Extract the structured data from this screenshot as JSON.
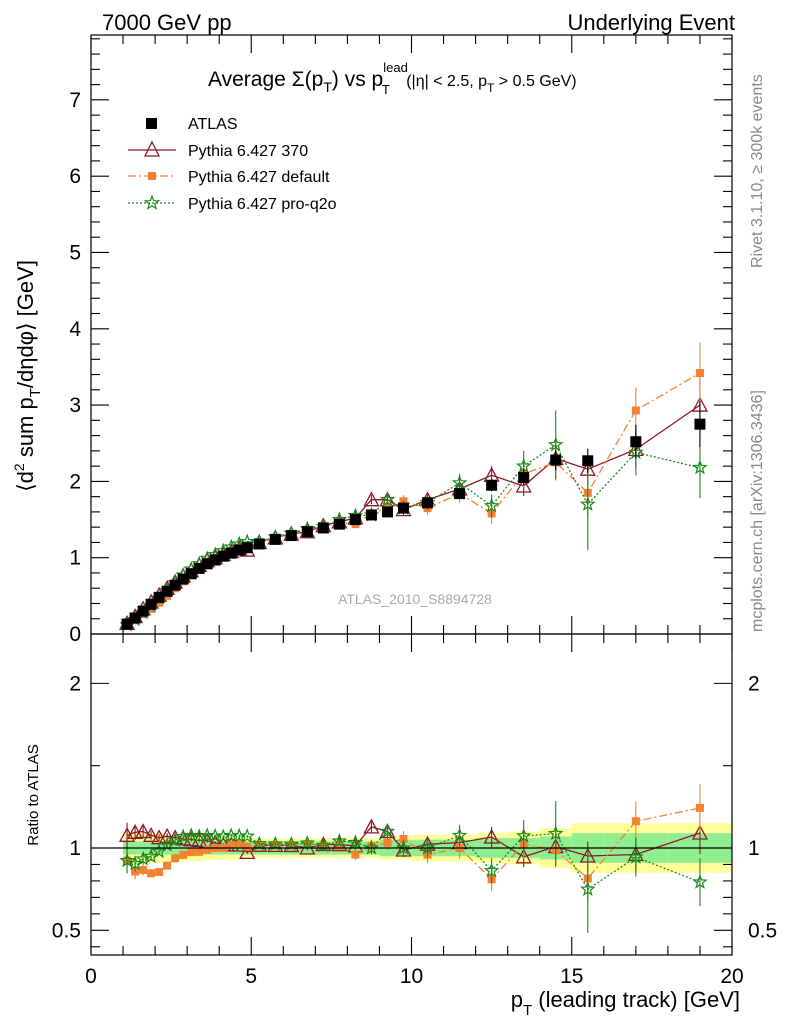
{
  "header": {
    "energy": "7000 GeV pp",
    "process": "Underlying Event"
  },
  "side": {
    "rivet": "Rivet 3.1.10, ≥ 300k events",
    "mcplots": "mcplots.cern.ch [arXiv:1306.3436]"
  },
  "main_title": {
    "prefix": "Average ",
    "sigma": "Σ(p",
    "sigma_sub": "T",
    "sigma_close": ") vs p",
    "lead_sup": "lead",
    "lead_sub": "T",
    "cut1": " (|η| < 2.5, p",
    "cut_sub": "T",
    "cut2": " > 0.5 GeV)"
  },
  "ylabel_main": {
    "p1": "⟨d",
    "sup2": "2",
    "p2": " sum p",
    "subT": "T",
    "p3": "/dηdφ⟩ [GeV]"
  },
  "ylabel_ratio": "Ratio to ATLAS",
  "xlabel": {
    "p1": "p",
    "subT": "T",
    "p2": " (leading track) [GeV]"
  },
  "analysis_label": "ATLAS_2010_S8894728",
  "legend": [
    {
      "key": "atlas",
      "label": "ATLAS"
    },
    {
      "key": "p370",
      "label": "Pythia 6.427 370"
    },
    {
      "key": "pdef",
      "label": "Pythia 6.427 default"
    },
    {
      "key": "pq2o",
      "label": "Pythia 6.427 pro-q2o"
    }
  ],
  "colors": {
    "atlas": "#000000",
    "p370": "#8b1a2b",
    "pdef": "#f28230",
    "pq2o": "#1a8a1a",
    "band_inner": "#90ee90",
    "band_outer": "#ffff99"
  },
  "chart_data": {
    "type": "line",
    "x_axis": {
      "range": [
        0,
        20
      ],
      "ticks": [
        0,
        5,
        10,
        15,
        20
      ]
    },
    "y_axis_main": {
      "range": [
        0,
        7.85
      ],
      "ticks": [
        0,
        1,
        2,
        3,
        4,
        5,
        6,
        7
      ]
    },
    "y_axis_ratio": {
      "range": [
        0.35,
        2.3
      ],
      "ticks": [
        0.5,
        1,
        2
      ]
    },
    "legend_position": "top-left",
    "x": [
      1.125,
      1.375,
      1.625,
      1.875,
      2.125,
      2.375,
      2.625,
      2.875,
      3.125,
      3.375,
      3.625,
      3.875,
      4.125,
      4.375,
      4.625,
      4.875,
      5.25,
      5.75,
      6.25,
      6.75,
      7.25,
      7.75,
      8.25,
      8.75,
      9.25,
      9.75,
      10.5,
      11.5,
      12.5,
      13.5,
      14.5,
      15.5,
      17.0,
      19.0
    ],
    "series": [
      {
        "key": "atlas",
        "name": "ATLAS",
        "values": [
          0.13,
          0.21,
          0.3,
          0.39,
          0.48,
          0.56,
          0.64,
          0.72,
          0.79,
          0.86,
          0.92,
          0.97,
          1.02,
          1.06,
          1.1,
          1.13,
          1.18,
          1.24,
          1.29,
          1.34,
          1.39,
          1.44,
          1.5,
          1.56,
          1.6,
          1.65,
          1.72,
          1.84,
          1.95,
          2.05,
          2.28,
          2.27,
          2.52,
          2.75
        ],
        "errors": [
          0.01,
          0.01,
          0.01,
          0.01,
          0.01,
          0.01,
          0.01,
          0.01,
          0.01,
          0.01,
          0.01,
          0.01,
          0.01,
          0.01,
          0.01,
          0.01,
          0.01,
          0.01,
          0.02,
          0.02,
          0.02,
          0.02,
          0.03,
          0.03,
          0.04,
          0.04,
          0.05,
          0.06,
          0.08,
          0.1,
          0.13,
          0.16,
          0.22,
          0.3
        ]
      },
      {
        "key": "p370",
        "name": "Pythia 6.427 370",
        "values": [
          0.14,
          0.23,
          0.33,
          0.42,
          0.51,
          0.6,
          0.68,
          0.76,
          0.83,
          0.9,
          0.96,
          1.0,
          1.04,
          1.08,
          1.12,
          1.1,
          1.2,
          1.26,
          1.31,
          1.34,
          1.42,
          1.47,
          1.52,
          1.76,
          1.76,
          1.63,
          1.76,
          1.9,
          2.08,
          1.94,
          2.3,
          2.16,
          2.42,
          3.0
        ],
        "errors": [
          0.01,
          0.01,
          0.01,
          0.01,
          0.01,
          0.01,
          0.01,
          0.01,
          0.01,
          0.01,
          0.01,
          0.01,
          0.01,
          0.01,
          0.01,
          0.01,
          0.02,
          0.02,
          0.02,
          0.02,
          0.03,
          0.03,
          0.04,
          0.06,
          0.06,
          0.07,
          0.07,
          0.09,
          0.12,
          0.13,
          0.17,
          0.2,
          0.25,
          0.35
        ]
      },
      {
        "key": "pdef",
        "name": "Pythia 6.427 default",
        "values": [
          0.12,
          0.18,
          0.26,
          0.33,
          0.41,
          0.5,
          0.6,
          0.69,
          0.77,
          0.84,
          0.91,
          0.97,
          1.02,
          1.08,
          1.13,
          1.14,
          1.2,
          1.26,
          1.31,
          1.37,
          1.41,
          1.46,
          1.44,
          1.58,
          1.65,
          1.74,
          1.65,
          1.84,
          1.58,
          2.1,
          2.25,
          1.85,
          2.93,
          3.42
        ],
        "errors": [
          0.01,
          0.01,
          0.01,
          0.01,
          0.01,
          0.01,
          0.01,
          0.01,
          0.01,
          0.01,
          0.01,
          0.01,
          0.01,
          0.01,
          0.01,
          0.01,
          0.02,
          0.02,
          0.02,
          0.03,
          0.03,
          0.04,
          0.05,
          0.06,
          0.07,
          0.08,
          0.09,
          0.12,
          0.14,
          0.18,
          0.24,
          0.3,
          0.3,
          0.4
        ]
      },
      {
        "key": "pq2o",
        "name": "Pythia 6.427 pro-q2o",
        "values": [
          0.12,
          0.19,
          0.28,
          0.37,
          0.47,
          0.57,
          0.67,
          0.77,
          0.85,
          0.92,
          0.99,
          1.04,
          1.09,
          1.14,
          1.18,
          1.21,
          1.21,
          1.27,
          1.32,
          1.38,
          1.41,
          1.5,
          1.55,
          1.56,
          1.76,
          1.65,
          1.72,
          1.98,
          1.68,
          2.2,
          2.48,
          1.7,
          2.38,
          2.18
        ],
        "errors": [
          0.01,
          0.01,
          0.01,
          0.01,
          0.01,
          0.01,
          0.01,
          0.01,
          0.01,
          0.01,
          0.01,
          0.01,
          0.01,
          0.01,
          0.01,
          0.01,
          0.02,
          0.02,
          0.02,
          0.03,
          0.03,
          0.04,
          0.05,
          0.06,
          0.07,
          0.08,
          0.09,
          0.12,
          0.15,
          0.2,
          0.45,
          0.6,
          0.3,
          0.4
        ]
      }
    ],
    "band": {
      "x_edges": [
        1.0,
        1.25,
        1.5,
        1.75,
        2.0,
        2.25,
        2.5,
        2.75,
        3.0,
        3.25,
        3.5,
        3.75,
        4.0,
        4.25,
        4.5,
        4.75,
        5.0,
        5.5,
        6.0,
        6.5,
        7.0,
        7.5,
        8.0,
        8.5,
        9.0,
        9.5,
        10.0,
        11.0,
        12.0,
        13.0,
        14.0,
        15.0,
        16.0,
        18.0,
        20.0
      ],
      "stat": [
        0.04,
        0.04,
        0.04,
        0.04,
        0.04,
        0.04,
        0.04,
        0.04,
        0.04,
        0.04,
        0.04,
        0.04,
        0.04,
        0.04,
        0.04,
        0.04,
        0.04,
        0.04,
        0.04,
        0.04,
        0.04,
        0.04,
        0.04,
        0.04,
        0.05,
        0.05,
        0.05,
        0.05,
        0.06,
        0.06,
        0.07,
        0.09,
        0.09,
        0.09,
        0.09
      ],
      "total": [
        0.1,
        0.1,
        0.09,
        0.09,
        0.09,
        0.08,
        0.08,
        0.08,
        0.08,
        0.08,
        0.07,
        0.07,
        0.07,
        0.07,
        0.07,
        0.07,
        0.06,
        0.06,
        0.06,
        0.06,
        0.06,
        0.06,
        0.06,
        0.06,
        0.07,
        0.07,
        0.08,
        0.08,
        0.09,
        0.1,
        0.12,
        0.15,
        0.15,
        0.15,
        0.15
      ]
    }
  }
}
